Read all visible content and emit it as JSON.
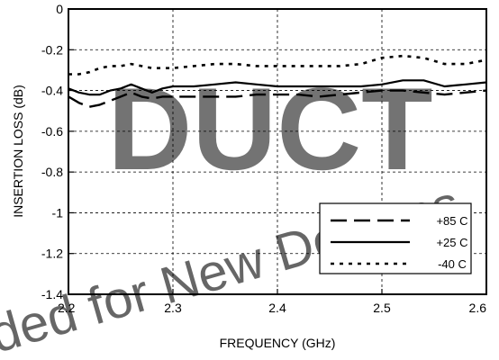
{
  "watermark": {
    "main_text": "DUCT",
    "diag_text": "ded for New Designs",
    "color": "#b8b8b8"
  },
  "chart_data": {
    "type": "line",
    "xlabel": "FREQUENCY (GHz)",
    "ylabel": "INSERTION LOSS (dB)",
    "xlim": [
      2.2,
      2.6
    ],
    "ylim": [
      -1.4,
      0
    ],
    "x_ticks": [
      2.2,
      2.3,
      2.4,
      2.5,
      2.6
    ],
    "x_tick_labels": [
      "2.2",
      "2.3",
      "2.4",
      "2.5",
      "2.6"
    ],
    "y_ticks": [
      0,
      -0.2,
      -0.4,
      -0.6,
      -0.8,
      -1,
      -1.2,
      -1.4
    ],
    "y_tick_labels": [
      "0",
      "-0.2",
      "-0.4",
      "-0.6",
      "-0.8",
      "-1",
      "-1.2",
      "-1.4"
    ],
    "grid": true,
    "grid_style": "dashed",
    "legend_position": "bottom-right",
    "series": [
      {
        "name": "+85 C",
        "style": "long-dash",
        "x": [
          2.2,
          2.21,
          2.22,
          2.23,
          2.24,
          2.25,
          2.26,
          2.27,
          2.28,
          2.29,
          2.3,
          2.32,
          2.34,
          2.36,
          2.38,
          2.4,
          2.42,
          2.44,
          2.46,
          2.48,
          2.5,
          2.52,
          2.54,
          2.56,
          2.58,
          2.6
        ],
        "y": [
          -0.43,
          -0.46,
          -0.48,
          -0.47,
          -0.45,
          -0.43,
          -0.41,
          -0.43,
          -0.44,
          -0.43,
          -0.43,
          -0.43,
          -0.43,
          -0.43,
          -0.42,
          -0.42,
          -0.42,
          -0.43,
          -0.42,
          -0.41,
          -0.4,
          -0.4,
          -0.41,
          -0.42,
          -0.41,
          -0.4
        ]
      },
      {
        "name": "+25 C",
        "style": "solid",
        "x": [
          2.2,
          2.21,
          2.22,
          2.23,
          2.24,
          2.25,
          2.26,
          2.27,
          2.28,
          2.29,
          2.3,
          2.32,
          2.34,
          2.36,
          2.38,
          2.4,
          2.42,
          2.44,
          2.46,
          2.48,
          2.5,
          2.52,
          2.54,
          2.56,
          2.58,
          2.6
        ],
        "y": [
          -0.39,
          -0.41,
          -0.42,
          -0.42,
          -0.4,
          -0.39,
          -0.37,
          -0.39,
          -0.41,
          -0.39,
          -0.38,
          -0.38,
          -0.37,
          -0.36,
          -0.37,
          -0.38,
          -0.38,
          -0.38,
          -0.38,
          -0.38,
          -0.37,
          -0.35,
          -0.35,
          -0.38,
          -0.37,
          -0.36
        ]
      },
      {
        "name": "-40 C",
        "style": "dotted",
        "x": [
          2.2,
          2.21,
          2.22,
          2.23,
          2.24,
          2.25,
          2.26,
          2.27,
          2.28,
          2.29,
          2.3,
          2.32,
          2.34,
          2.36,
          2.38,
          2.4,
          2.42,
          2.44,
          2.46,
          2.48,
          2.5,
          2.52,
          2.54,
          2.56,
          2.58,
          2.6
        ],
        "y": [
          -0.32,
          -0.32,
          -0.31,
          -0.29,
          -0.28,
          -0.28,
          -0.27,
          -0.28,
          -0.29,
          -0.29,
          -0.29,
          -0.28,
          -0.27,
          -0.27,
          -0.28,
          -0.28,
          -0.28,
          -0.28,
          -0.28,
          -0.27,
          -0.24,
          -0.23,
          -0.24,
          -0.27,
          -0.27,
          -0.25
        ]
      }
    ]
  }
}
